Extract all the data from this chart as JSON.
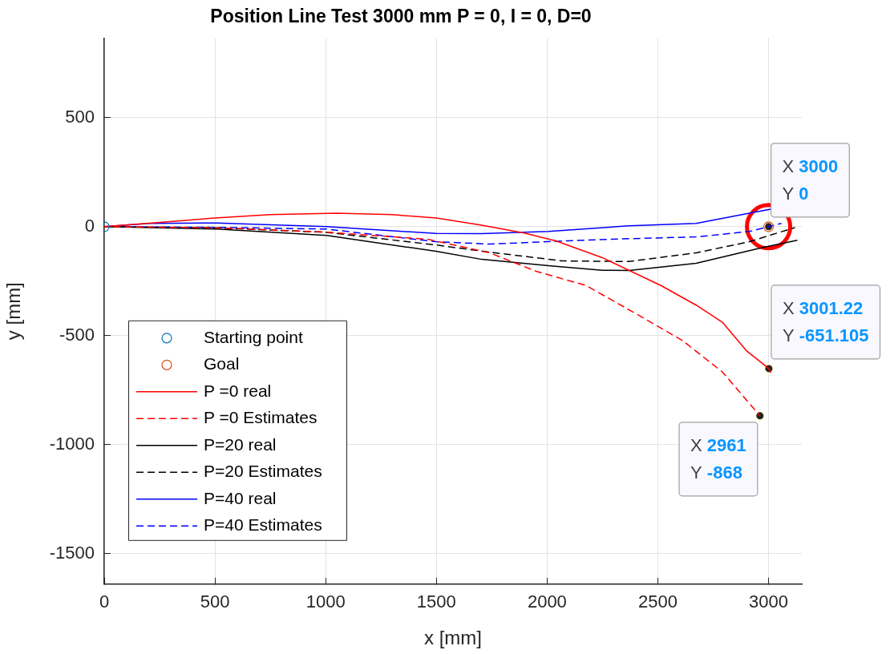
{
  "chart_data": {
    "type": "line",
    "title": "Position Line Test 3000 mm P = 0, I = 0, D=0",
    "xlabel": "x [mm]",
    "ylabel": "y [mm]",
    "xlim": [
      0,
      3150
    ],
    "ylim": [
      -1640,
      865
    ],
    "xticks": [
      0,
      500,
      1000,
      1500,
      2000,
      2500,
      3000
    ],
    "yticks": [
      -1500,
      -1000,
      -500,
      0,
      500
    ],
    "grid": true,
    "legend": "bottom left",
    "series": [
      {
        "name": "Starting point",
        "type": "scatter",
        "marker": "circle",
        "color": "#0072bd",
        "x": [
          0
        ],
        "values": [
          0
        ]
      },
      {
        "name": "Goal",
        "type": "scatter",
        "marker": "circle",
        "color": "#d95319",
        "x": [
          3000
        ],
        "values": [
          0
        ]
      },
      {
        "name": "P =0 real",
        "type": "line",
        "line_style": "solid",
        "color": "#ff0000",
        "x": [
          0,
          250,
          500,
          750,
          1050,
          1300,
          1500,
          1705,
          1897,
          2042,
          2249,
          2514,
          2673,
          2793,
          2900,
          3001.22,
          3010
        ],
        "values": [
          0,
          20,
          40,
          55,
          62,
          55,
          40,
          7,
          -29,
          -66,
          -142,
          -270,
          -360,
          -440,
          -569,
          -651.105,
          -670
        ]
      },
      {
        "name": "P =0 Estimates",
        "type": "line",
        "line_style": "dashed",
        "color": "#ff0000",
        "x": [
          0,
          500,
          1000,
          1462,
          1741,
          1948,
          2176,
          2430,
          2611,
          2793,
          2961
        ],
        "values": [
          0,
          -5,
          -25,
          -58,
          -120,
          -204,
          -270,
          -416,
          -522,
          -668,
          -868
        ]
      },
      {
        "name": "P=20 real",
        "type": "line",
        "line_style": "solid",
        "color": "#000000",
        "x": [
          0,
          508,
          1005,
          1498,
          1705,
          2006,
          2250,
          2369,
          2673,
          2974,
          3130
        ],
        "values": [
          0,
          -11,
          -40,
          -113,
          -150,
          -179,
          -200,
          -201,
          -168,
          -95,
          -62
        ]
      },
      {
        "name": "P=20 Estimates",
        "type": "line",
        "line_style": "dashed",
        "color": "#000000",
        "x": [
          0,
          500,
          1005,
          1498,
          1741,
          2067,
          2369,
          2673,
          2913,
          3119
        ],
        "values": [
          0,
          -5,
          -26,
          -84,
          -117,
          -157,
          -160,
          -120,
          -69,
          -4
        ]
      },
      {
        "name": "P=40 real",
        "type": "line",
        "line_style": "solid",
        "color": "#0000ff",
        "x": [
          0,
          206,
          508,
          1005,
          1498,
          1705,
          2006,
          2369,
          2673,
          2913,
          3010
        ],
        "values": [
          0,
          15,
          17,
          0,
          -31,
          -32,
          -22,
          4,
          15,
          62,
          80
        ]
      },
      {
        "name": "P=40 Estimates",
        "type": "line",
        "line_style": "dashed",
        "color": "#0000ff",
        "x": [
          0,
          500,
          1005,
          1498,
          1741,
          2067,
          2369,
          2673,
          2913,
          3058
        ],
        "values": [
          0,
          -3,
          -11,
          -69,
          -80,
          -66,
          -55,
          -47,
          -22,
          15
        ]
      },
      {
        "type": "scatter",
        "marker": "circle",
        "color": "#ff0000",
        "x": [
          3000
        ],
        "values": [
          0
        ]
      }
    ],
    "annotations": [
      {
        "text": "X 3000\nY 0",
        "x": 3000,
        "y": 0
      },
      {
        "text": "X 3001.22\nY -651.105",
        "x": 3001.22,
        "y": -651.105
      },
      {
        "text": "X 2961\nY -868",
        "x": 2961,
        "y": -868
      }
    ]
  }
}
